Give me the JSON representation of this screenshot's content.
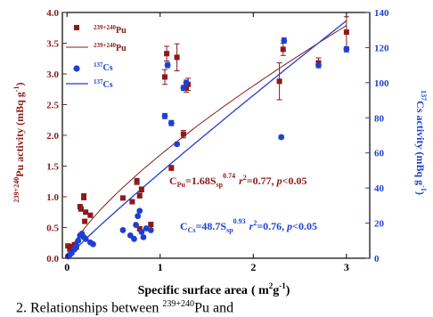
{
  "chart_data": {
    "type": "scatter",
    "xlabel": "Specific surface area",
    "xlabel_unit": "( m",
    "xlabel_unit_sup": "2",
    "xlabel_unit_g": "g",
    "xlabel_unit_sup2": "-1",
    "xlabel_unit_close": ")",
    "ylabel_left_sup": "239+240",
    "ylabel_left": "Pu activity (mBq g",
    "ylabel_left_sup2": "-1",
    "ylabel_left_close": ")",
    "ylabel_right_sup": "137",
    "ylabel_right": "Cs activity (mBq g",
    "ylabel_right_sup2": "-1",
    "ylabel_right_close": ")",
    "xlim": [
      -0.05,
      3.25
    ],
    "ylim_left": [
      0,
      4.0
    ],
    "ylim_right": [
      0,
      140
    ],
    "x_ticks": [
      "0",
      "1",
      "2",
      "3"
    ],
    "y_left_ticks": [
      "0.0",
      "0.5",
      "1.0",
      "1.5",
      "2.0",
      "2.5",
      "3.0",
      "3.5",
      "4.0"
    ],
    "y_right_ticks": [
      "0",
      "20",
      "40",
      "60",
      "80",
      "100",
      "120",
      "140"
    ],
    "colors": {
      "pu": "#8b1a1a",
      "cs": "#1f3fd0"
    },
    "legend": {
      "position": "top-left",
      "pu_points_sup": "239+240",
      "pu_points": "Pu",
      "pu_line_sup": "239+240",
      "pu_line": "Pu",
      "cs_points_sup": "137",
      "cs_points": "Cs",
      "cs_line_sup": "137",
      "cs_line": "Cs"
    },
    "series": [
      {
        "name": "239+240Pu",
        "axis": "left",
        "marker": "square",
        "points": [
          {
            "x": 0.01,
            "y": 0.2,
            "err": 0.02
          },
          {
            "x": 0.03,
            "y": 0.15,
            "err": 0.02
          },
          {
            "x": 0.05,
            "y": 0.19,
            "err": 0.02
          },
          {
            "x": 0.08,
            "y": 0.22,
            "err": 0.02
          },
          {
            "x": 0.1,
            "y": 0.18,
            "err": 0.02
          },
          {
            "x": 0.14,
            "y": 0.84,
            "err": 0.03
          },
          {
            "x": 0.15,
            "y": 0.8,
            "err": 0.03
          },
          {
            "x": 0.18,
            "y": 1.0,
            "err": 0.05
          },
          {
            "x": 0.19,
            "y": 0.6,
            "err": 0.03
          },
          {
            "x": 0.2,
            "y": 0.75,
            "err": 0.03
          },
          {
            "x": 0.25,
            "y": 0.7,
            "err": 0.03
          },
          {
            "x": 0.6,
            "y": 0.98,
            "err": 0.03
          },
          {
            "x": 0.7,
            "y": 0.92,
            "err": 0.03
          },
          {
            "x": 0.75,
            "y": 1.25,
            "err": 0.05
          },
          {
            "x": 0.78,
            "y": 1.02,
            "err": 0.04
          },
          {
            "x": 0.8,
            "y": 1.12,
            "err": 0.04
          },
          {
            "x": 0.78,
            "y": 0.48,
            "err": 0.03
          },
          {
            "x": 0.9,
            "y": 0.55,
            "err": 0.03
          },
          {
            "x": 1.05,
            "y": 2.95,
            "err": 0.12
          },
          {
            "x": 1.07,
            "y": 3.33,
            "err": 0.12
          },
          {
            "x": 1.12,
            "y": 1.47,
            "err": 0.04
          },
          {
            "x": 1.18,
            "y": 3.27,
            "err": 0.22
          },
          {
            "x": 1.25,
            "y": 2.02,
            "err": 0.06
          },
          {
            "x": 1.28,
            "y": 2.78,
            "err": 0.08
          },
          {
            "x": 1.3,
            "y": 2.83,
            "err": 0.1
          },
          {
            "x": 2.28,
            "y": 2.88,
            "err": 0.3
          },
          {
            "x": 2.32,
            "y": 3.4,
            "err": 0.1
          },
          {
            "x": 2.7,
            "y": 3.18,
            "err": 0.08
          },
          {
            "x": 3.0,
            "y": 3.68,
            "err": 0.25
          }
        ]
      },
      {
        "name": "137Cs",
        "axis": "right",
        "marker": "circle",
        "points": [
          {
            "x": 0.01,
            "y": 1,
            "err": 0.6
          },
          {
            "x": 0.03,
            "y": 2,
            "err": 0.6
          },
          {
            "x": 0.05,
            "y": 3,
            "err": 0.6
          },
          {
            "x": 0.08,
            "y": 5,
            "err": 0.6
          },
          {
            "x": 0.1,
            "y": 7,
            "err": 0.6
          },
          {
            "x": 0.12,
            "y": 10,
            "err": 0.6
          },
          {
            "x": 0.14,
            "y": 13,
            "err": 0.6
          },
          {
            "x": 0.16,
            "y": 14,
            "err": 0.6
          },
          {
            "x": 0.18,
            "y": 12,
            "err": 0.6
          },
          {
            "x": 0.2,
            "y": 11,
            "err": 0.6
          },
          {
            "x": 0.25,
            "y": 9,
            "err": 0.6
          },
          {
            "x": 0.28,
            "y": 8,
            "err": 0.6
          },
          {
            "x": 0.6,
            "y": 16,
            "err": 0.6
          },
          {
            "x": 0.68,
            "y": 13,
            "err": 0.6
          },
          {
            "x": 0.72,
            "y": 11,
            "err": 0.6
          },
          {
            "x": 0.74,
            "y": 19,
            "err": 0.6
          },
          {
            "x": 0.76,
            "y": 24,
            "err": 0.6
          },
          {
            "x": 0.78,
            "y": 27,
            "err": 0.6
          },
          {
            "x": 0.8,
            "y": 15,
            "err": 0.6
          },
          {
            "x": 0.82,
            "y": 12,
            "err": 0.6
          },
          {
            "x": 0.85,
            "y": 17,
            "err": 0.6
          },
          {
            "x": 0.9,
            "y": 16,
            "err": 0.6
          },
          {
            "x": 1.05,
            "y": 81,
            "err": 1.5
          },
          {
            "x": 1.08,
            "y": 110,
            "err": 1.5
          },
          {
            "x": 1.12,
            "y": 77,
            "err": 1.5
          },
          {
            "x": 1.18,
            "y": 65,
            "err": 1.0
          },
          {
            "x": 1.25,
            "y": 97,
            "err": 1.5
          },
          {
            "x": 1.28,
            "y": 100,
            "err": 1.5
          },
          {
            "x": 2.3,
            "y": 69,
            "err": 1.0
          },
          {
            "x": 2.33,
            "y": 124,
            "err": 1.5
          },
          {
            "x": 2.7,
            "y": 110,
            "err": 1.5
          },
          {
            "x": 3.0,
            "y": 119,
            "err": 1.5
          }
        ]
      }
    ],
    "fits": {
      "pu": {
        "coef": 1.68,
        "exp": 0.74
      },
      "cs": {
        "coef": 48.7,
        "exp": 0.93
      }
    },
    "annotations": {
      "pu": {
        "c": "C",
        "c_sub": "Pu",
        "eq": "=1.68S",
        "s_sub": "sp",
        "exp": "0.74",
        "r": "r",
        "r_sup": "2",
        "rest1": "=0.77, ",
        "p": "p",
        "rest2": "<0.05"
      },
      "cs": {
        "c": "C",
        "c_sub": "Cs",
        "eq": "=48.7S",
        "s_sub": "sp",
        "exp": "0.93",
        "r": "r",
        "r_sup": "2",
        "rest1": "=0.76, ",
        "p": "p",
        "rest2": "<0.05"
      }
    }
  },
  "caption": {
    "prefix": "2.   Relationships between ",
    "sup": "239+240",
    "text": "Pu and"
  }
}
